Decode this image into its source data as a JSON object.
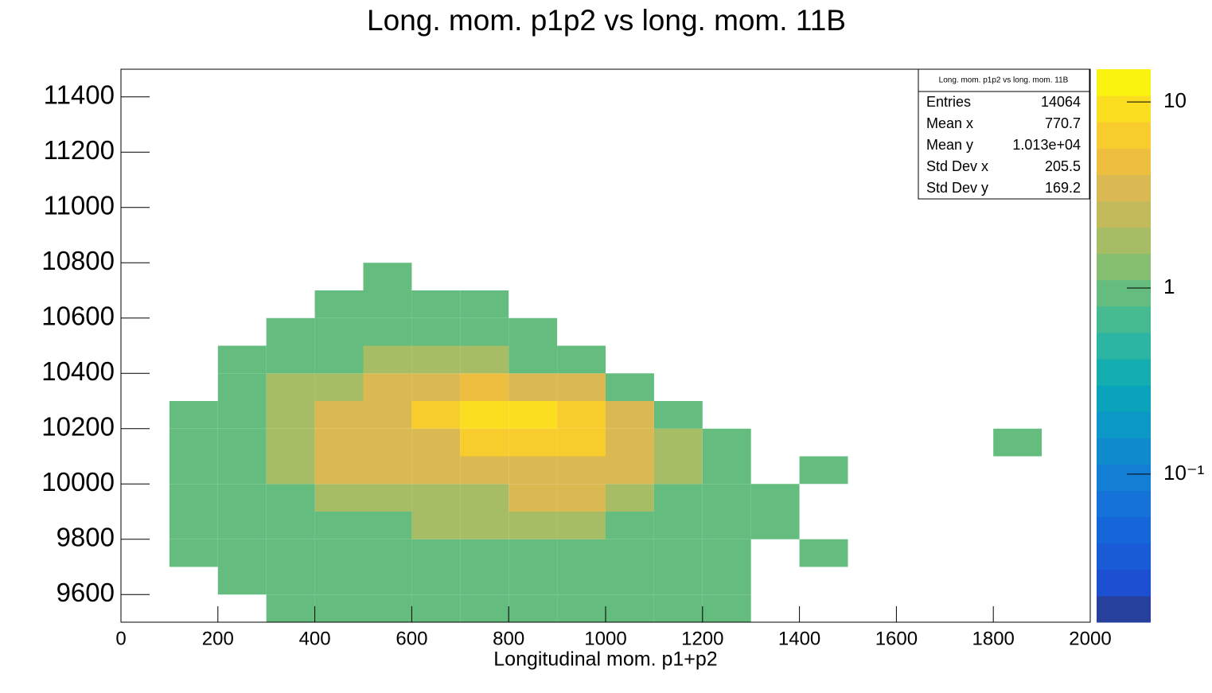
{
  "chart_data": {
    "type": "heatmap",
    "title": "Long.  mom. p1p2 vs long. mom. 11B",
    "x_label": "Longitudinal mom. p1+p2",
    "xbins": [
      0,
      100,
      200,
      300,
      400,
      500,
      600,
      700,
      800,
      900,
      1000,
      1100,
      1200,
      1300,
      1400,
      1500,
      1600,
      1700,
      1800,
      1900,
      2000
    ],
    "ybins": [
      9500,
      9600,
      9700,
      9800,
      9900,
      10000,
      10100,
      10200,
      10300,
      10400,
      10500,
      10600,
      10700,
      10800,
      10900,
      11000,
      11100,
      11200,
      11300,
      11400,
      11500
    ],
    "z": [
      [
        null,
        null,
        null,
        1,
        1,
        1,
        1,
        1,
        1,
        1,
        1,
        1,
        1,
        null,
        null,
        null,
        null,
        null,
        null,
        null
      ],
      [
        null,
        null,
        1,
        1,
        1,
        1,
        1,
        1,
        1,
        1,
        1,
        1,
        1,
        null,
        null,
        null,
        null,
        null,
        null,
        null
      ],
      [
        null,
        1,
        1,
        1,
        1,
        1,
        1,
        1,
        1,
        1,
        1,
        1,
        1,
        null,
        1,
        null,
        null,
        null,
        null,
        null
      ],
      [
        null,
        1,
        1,
        1,
        1,
        1,
        2,
        2,
        2,
        2,
        1,
        1,
        1,
        1,
        null,
        null,
        null,
        null,
        null,
        null
      ],
      [
        null,
        1,
        1,
        1,
        2,
        2,
        2,
        2,
        3,
        3,
        2,
        1,
        1,
        1,
        null,
        null,
        null,
        null,
        null,
        null
      ],
      [
        null,
        1,
        1,
        2,
        3,
        3,
        3,
        3,
        4,
        4,
        3,
        2,
        1,
        null,
        1,
        null,
        null,
        null,
        null,
        null
      ],
      [
        null,
        1,
        1,
        2,
        3,
        3,
        4,
        6,
        6,
        6,
        4,
        2,
        1,
        null,
        null,
        null,
        null,
        null,
        1,
        null
      ],
      [
        null,
        1,
        1,
        2,
        3,
        4,
        6,
        8,
        10,
        6,
        3,
        1,
        null,
        null,
        null,
        null,
        null,
        null,
        null,
        null
      ],
      [
        null,
        null,
        1,
        2,
        2,
        3,
        4,
        5,
        4,
        3,
        1,
        null,
        null,
        null,
        null,
        null,
        null,
        null,
        null,
        null
      ],
      [
        null,
        null,
        1,
        1,
        1,
        2,
        2,
        2,
        1,
        1,
        null,
        null,
        null,
        null,
        null,
        null,
        null,
        null,
        null,
        null
      ],
      [
        null,
        null,
        null,
        1,
        1,
        1,
        1,
        1,
        1,
        null,
        null,
        null,
        null,
        null,
        null,
        null,
        null,
        null,
        null,
        null
      ],
      [
        null,
        null,
        null,
        null,
        1,
        1,
        1,
        1,
        null,
        null,
        null,
        null,
        null,
        null,
        null,
        null,
        null,
        null,
        null,
        null
      ],
      [
        null,
        null,
        null,
        null,
        null,
        1,
        null,
        null,
        null,
        null,
        null,
        null,
        null,
        null,
        null,
        null,
        null,
        null,
        null,
        null
      ],
      [
        null,
        null,
        null,
        null,
        null,
        null,
        null,
        null,
        null,
        null,
        null,
        null,
        null,
        null,
        null,
        null,
        null,
        null,
        null,
        null
      ],
      [
        null,
        null,
        null,
        null,
        null,
        null,
        null,
        null,
        null,
        null,
        null,
        null,
        null,
        null,
        null,
        null,
        null,
        null,
        null,
        null
      ],
      [
        null,
        null,
        null,
        null,
        null,
        null,
        null,
        null,
        null,
        null,
        null,
        null,
        null,
        null,
        null,
        null,
        null,
        null,
        null,
        null
      ],
      [
        null,
        null,
        null,
        null,
        null,
        null,
        null,
        null,
        null,
        null,
        null,
        null,
        null,
        null,
        null,
        null,
        null,
        null,
        null,
        null
      ],
      [
        null,
        null,
        null,
        null,
        null,
        null,
        null,
        null,
        null,
        null,
        null,
        null,
        null,
        null,
        null,
        null,
        null,
        null,
        null,
        null
      ],
      [
        null,
        null,
        null,
        null,
        null,
        null,
        null,
        null,
        null,
        null,
        null,
        null,
        null,
        null,
        null,
        null,
        null,
        null,
        null,
        null
      ],
      [
        null,
        null,
        null,
        null,
        null,
        null,
        null,
        null,
        null,
        null,
        null,
        null,
        null,
        null,
        null,
        null,
        null,
        null,
        null,
        null
      ]
    ],
    "xlim": [
      0,
      2000
    ],
    "ylim": [
      9500,
      11500
    ],
    "xticks": [
      0,
      200,
      400,
      600,
      800,
      1000,
      1200,
      1400,
      1600,
      1800,
      2000
    ],
    "yticks": [
      9600,
      9800,
      10000,
      10200,
      10400,
      10600,
      10800,
      11000,
      11200,
      11400
    ],
    "zlim": [
      0.016,
      15
    ],
    "zlog": true,
    "zticks": [
      10,
      1,
      {
        "value": 0.1,
        "label": "10⁻¹"
      }
    ],
    "palette": [
      "#27409d",
      "#1c4fd1",
      "#1a5bd8",
      "#1566d8",
      "#1472d8",
      "#127fd4",
      "#0f8bcd",
      "#0b98c6",
      "#0aa3bc",
      "#14adb0",
      "#2cb5a2",
      "#46ba90",
      "#64bd7e",
      "#86bf70",
      "#a6bd65",
      "#c3ba5c",
      "#dbb952",
      "#eebe3f",
      "#f8cc2c",
      "#fbde20",
      "#f9f30f"
    ],
    "stats": {
      "title": "Long.  mom. p1p2 vs long. mom. 11B",
      "rows": [
        [
          "Entries",
          "14064"
        ],
        [
          "Mean x",
          "770.7"
        ],
        [
          "Mean y",
          "1.013e+04"
        ],
        [
          "Std Dev x",
          "205.5"
        ],
        [
          "Std Dev y",
          "169.2"
        ]
      ]
    }
  }
}
